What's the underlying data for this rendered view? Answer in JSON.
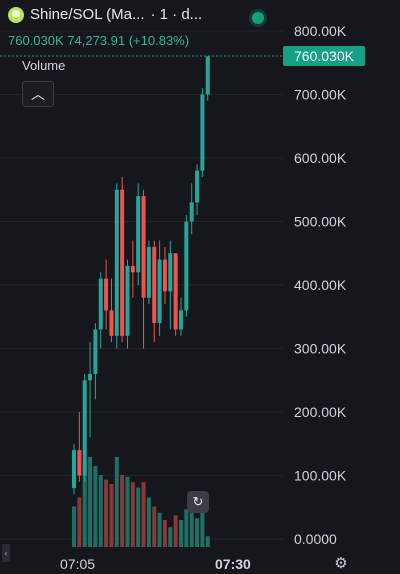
{
  "header": {
    "pair": "Shine/SOL (Ma...",
    "interval": "· 1 · d...",
    "ohlc": "760.030K 74,273.91 (+10.83%)",
    "volume_label": "Volume",
    "collapse_icon": "chevron-up-icon",
    "live_color": "#14a080"
  },
  "last_price_label": "760.030K",
  "reset_icon": "reset-icon",
  "settings_icon": "gear-icon",
  "colors": {
    "up": "#26a69a",
    "down": "#ef5350",
    "up_vol": "#1f6f66",
    "down_vol": "#8a3838",
    "bg": "#16171c"
  },
  "chart_data": {
    "type": "candlestick",
    "yticks": [
      "800.00K",
      "700.00K",
      "600.00K",
      "500.00K",
      "400.00K",
      "300.00K",
      "200.00K",
      "100.00K",
      "0.0000"
    ],
    "ylim": [
      0,
      800000
    ],
    "xticks": [
      "07:05",
      "07:30"
    ],
    "last_price": 760030,
    "candles": [
      {
        "o": 80000,
        "h": 150000,
        "l": 70000,
        "c": 140000,
        "v": 0.45
      },
      {
        "o": 140000,
        "h": 200000,
        "l": 90000,
        "c": 100000,
        "v": 0.55
      },
      {
        "o": 100000,
        "h": 260000,
        "l": 90000,
        "c": 250000,
        "v": 0.95
      },
      {
        "o": 250000,
        "h": 310000,
        "l": 160000,
        "c": 260000,
        "v": 1.0
      },
      {
        "o": 260000,
        "h": 340000,
        "l": 220000,
        "c": 330000,
        "v": 0.9
      },
      {
        "o": 330000,
        "h": 420000,
        "l": 300000,
        "c": 410000,
        "v": 0.8
      },
      {
        "o": 410000,
        "h": 440000,
        "l": 330000,
        "c": 360000,
        "v": 0.75
      },
      {
        "o": 360000,
        "h": 410000,
        "l": 310000,
        "c": 320000,
        "v": 0.7
      },
      {
        "o": 320000,
        "h": 560000,
        "l": 300000,
        "c": 550000,
        "v": 1.0
      },
      {
        "o": 550000,
        "h": 570000,
        "l": 310000,
        "c": 320000,
        "v": 0.8
      },
      {
        "o": 320000,
        "h": 440000,
        "l": 300000,
        "c": 430000,
        "v": 0.78
      },
      {
        "o": 430000,
        "h": 470000,
        "l": 380000,
        "c": 420000,
        "v": 0.72
      },
      {
        "o": 420000,
        "h": 560000,
        "l": 400000,
        "c": 540000,
        "v": 0.66
      },
      {
        "o": 540000,
        "h": 550000,
        "l": 300000,
        "c": 380000,
        "v": 0.72
      },
      {
        "o": 380000,
        "h": 470000,
        "l": 370000,
        "c": 460000,
        "v": 0.55
      },
      {
        "o": 460000,
        "h": 470000,
        "l": 310000,
        "c": 340000,
        "v": 0.45
      },
      {
        "o": 340000,
        "h": 470000,
        "l": 320000,
        "c": 440000,
        "v": 0.38
      },
      {
        "o": 440000,
        "h": 460000,
        "l": 370000,
        "c": 390000,
        "v": 0.3
      },
      {
        "o": 390000,
        "h": 470000,
        "l": 330000,
        "c": 450000,
        "v": 0.22
      },
      {
        "o": 450000,
        "h": 450000,
        "l": 320000,
        "c": 330000,
        "v": 0.35
      },
      {
        "o": 330000,
        "h": 380000,
        "l": 320000,
        "c": 360000,
        "v": 0.3
      },
      {
        "o": 360000,
        "h": 510000,
        "l": 350000,
        "c": 500000,
        "v": 0.42
      },
      {
        "o": 500000,
        "h": 560000,
        "l": 480000,
        "c": 530000,
        "v": 0.4
      },
      {
        "o": 530000,
        "h": 590000,
        "l": 510000,
        "c": 580000,
        "v": 0.32
      },
      {
        "o": 580000,
        "h": 710000,
        "l": 570000,
        "c": 700000,
        "v": 0.42
      },
      {
        "o": 700000,
        "h": 760030,
        "l": 690000,
        "c": 760030,
        "v": 0.12
      }
    ]
  }
}
